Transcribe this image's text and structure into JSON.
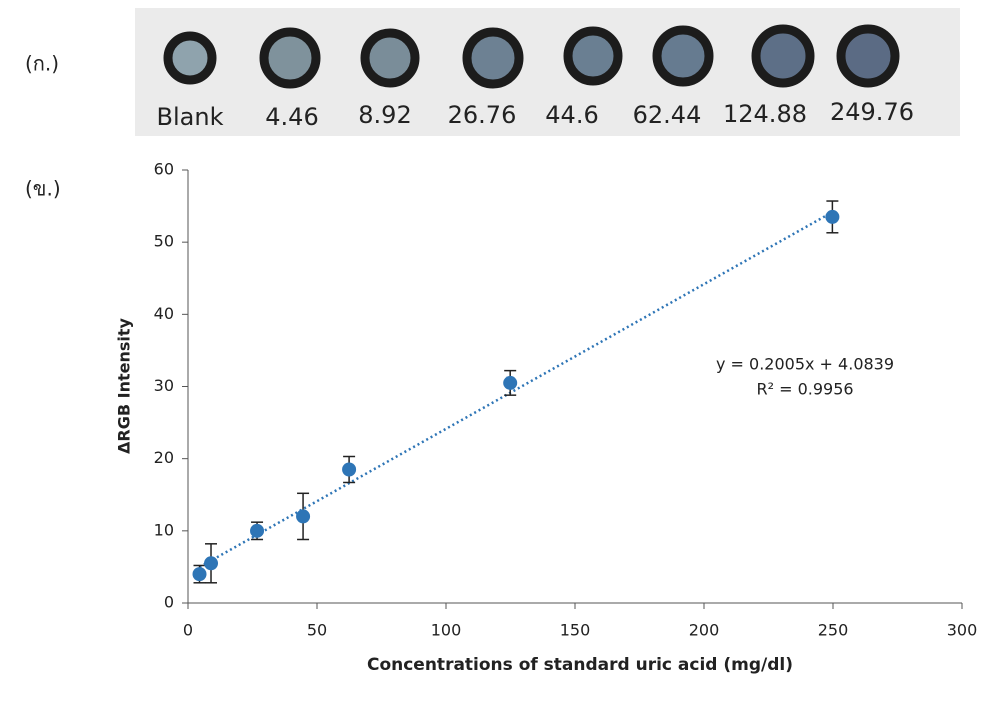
{
  "panel_labels": [
    "(ก.)",
    "(ข.)"
  ],
  "strip": {
    "labels": [
      "Blank",
      "4.46",
      "8.92",
      "26.76",
      "44.6",
      "62.44",
      "124.88",
      "249.76"
    ]
  },
  "chart_data": {
    "type": "scatter",
    "x_label": "Concentrations of standard uric acid (mg/dl)",
    "y_label": "ΔRGB Intensity",
    "x": [
      4.46,
      8.92,
      26.76,
      44.6,
      62.44,
      124.88,
      249.76
    ],
    "series": [
      {
        "color": "#2e75b6",
        "values": [
          4,
          5.5,
          10,
          12,
          18.5,
          30.5,
          53.5
        ],
        "errors": [
          1.2,
          2.7,
          1.2,
          3.2,
          1.8,
          1.7,
          2.2
        ]
      }
    ],
    "trendline": {
      "slope": 0.2005,
      "intercept": 4.0839,
      "color": "#2e75b6"
    },
    "annotations": [
      "y = 0.2005x + 4.0839",
      "R² = 0.9956"
    ],
    "xlim": [
      0,
      300
    ],
    "xticks": [
      0,
      50,
      100,
      150,
      200,
      250,
      300
    ],
    "ylim": [
      0,
      60
    ],
    "yticks": [
      0,
      10,
      20,
      30,
      40,
      50,
      60
    ],
    "grid": false
  }
}
